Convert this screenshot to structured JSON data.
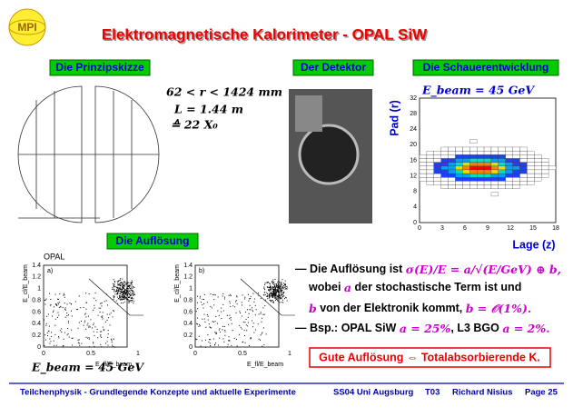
{
  "header": {
    "logo": "MPI",
    "title": "Elektromagnetische Kalorimeter - OPAL SiW"
  },
  "sections": {
    "sketch": "Die Prinzipskizze",
    "detector": "Der Detektor",
    "shower": "Die Schauerentwicklung",
    "resolution": "Die Auflösung"
  },
  "dimensions": [
    "62 < r < 1424 mm",
    "L = 1.44 m",
    "≙ 22 X₀"
  ],
  "shower": {
    "beam": "E_beam = 45 GeV",
    "ylabel": "Pad (r)",
    "xlabel": "Lage (z)",
    "yticks": [
      "0",
      "4",
      "8",
      "12",
      "16",
      "20",
      "24",
      "28",
      "32"
    ],
    "xticks": [
      "0",
      "3",
      "6",
      "9",
      "12",
      "15",
      "18"
    ]
  },
  "resolution": {
    "experiment": "OPAL",
    "beam": "E_beam = 45 GeV",
    "ylabel": "E_cl/E_beam",
    "xlabel": "E_fl/E_beam",
    "yticks": [
      "0",
      "0.2",
      "0.4",
      "0.6",
      "0.8",
      "1",
      "1.2",
      "1.4"
    ],
    "xticks": [
      "0",
      "0.5",
      "1"
    ],
    "plots": [
      "a)",
      "b)"
    ]
  },
  "bullets": [
    [
      "— Die Auflösung ist ",
      "σ(E)/E = a/√(E/GeV) ⊕ b,"
    ],
    [
      "wobei ",
      "a",
      " der stochastische Term ist und"
    ],
    [
      "b",
      " von der Elektronik kommt, ",
      "b = 𝒪(1%)."
    ],
    [
      "— Bsp.: OPAL SiW ",
      "a = 25%",
      ", L3 BGO ",
      "a = 2%."
    ]
  ],
  "conclusion": "Gute Auflösung ⇔ Totalabsorbierende K.",
  "footer": [
    "Teilchenphysik - Grundlegende Konzepte und aktuelle Experimente",
    "SS04 Uni Augsburg",
    "T03",
    "Richard Nisius",
    "Page 25"
  ]
}
